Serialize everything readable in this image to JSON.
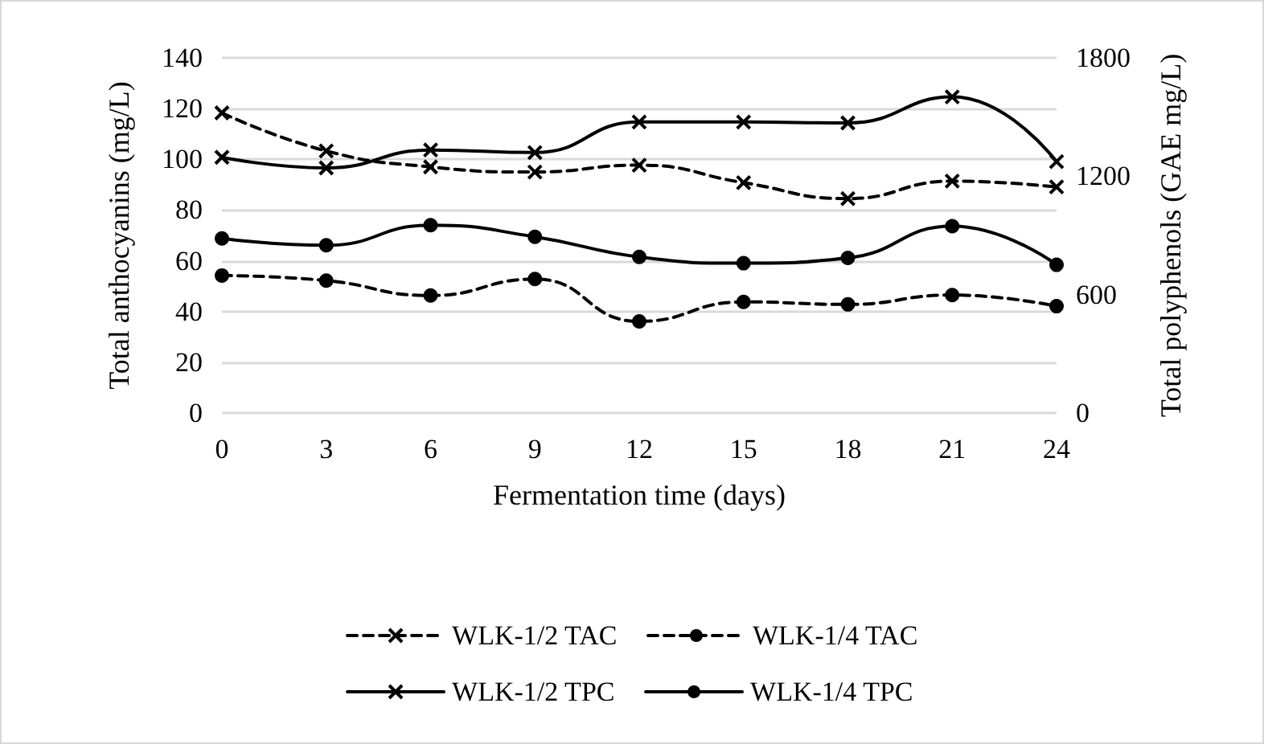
{
  "chart_data": {
    "type": "line",
    "xlabel": "Fermentation time (days)",
    "ylabel": "Total anthocyanins (mg/L)",
    "y2label": "Total polyphenols (GAE mg/L)",
    "x": [
      0,
      3,
      6,
      9,
      12,
      15,
      18,
      21,
      24
    ],
    "xlim": [
      0,
      24
    ],
    "xticks": [
      0,
      3,
      6,
      9,
      12,
      15,
      18,
      21,
      24
    ],
    "ylim": [
      0,
      140
    ],
    "yticks": [
      0,
      20,
      40,
      60,
      80,
      100,
      120,
      140
    ],
    "y2lim": [
      0,
      1800
    ],
    "y2ticks": [
      0,
      600,
      1200,
      1800
    ],
    "grid": "y",
    "legend": "bottom",
    "series": [
      {
        "name": "WLK-1/2 TAC",
        "color": "#000000",
        "marker": "cross",
        "line_style": "dashed",
        "values": [
          118.3,
          103.3,
          97,
          95,
          97.7,
          90.8,
          84.5,
          91.4,
          89.1
        ]
      },
      {
        "name": "WLK-1/4 TAC",
        "color": "#000000",
        "marker": "circle",
        "line_style": "dashed",
        "values": [
          54.2,
          52.2,
          46.3,
          52.8,
          36.1,
          43.8,
          42.8,
          46.5,
          42.1
        ]
      },
      {
        "name": "WLK-1/2 TPC",
        "color": "#000000",
        "marker": "cross",
        "line_style": "solid",
        "axis": "y2",
        "values": [
          1296,
          1242,
          1333,
          1320,
          1475,
          1475,
          1470,
          1602,
          1274
        ]
      },
      {
        "name": "WLK-1/4 TPC",
        "color": "#000000",
        "marker": "circle",
        "line_style": "solid",
        "axis": "y2",
        "values": [
          885,
          850,
          952,
          893,
          791,
          759,
          786,
          947,
          751
        ]
      }
    ]
  }
}
